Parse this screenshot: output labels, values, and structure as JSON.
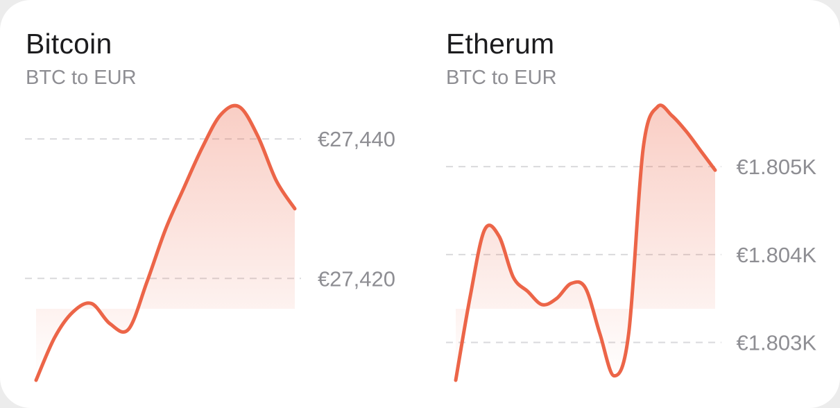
{
  "colors": {
    "line": "#ec6548",
    "grid": "#d9d9dc",
    "label": "#8e8e93"
  },
  "chart_data": [
    {
      "type": "area",
      "title": "Bitcoin",
      "subtitle": "BTC to EUR",
      "y_tick_labels": [
        "€27,440",
        "€27,420"
      ],
      "y_ticks": [
        27440,
        27420
      ],
      "ylim": [
        27405.4,
        27444.6
      ],
      "x": [
        0,
        1,
        2,
        3,
        4,
        5,
        6,
        7,
        8,
        9,
        10,
        11,
        12,
        13,
        14
      ],
      "values": [
        27405.4,
        27411.5,
        27415.2,
        27416.4,
        27413.5,
        27412.7,
        27419.5,
        27427.0,
        27433.0,
        27438.8,
        27443.5,
        27444.6,
        27440.4,
        27434.0,
        27430.0
      ],
      "grid": true,
      "legend": "none"
    },
    {
      "type": "area",
      "title": "Etherum",
      "subtitle": "BTC to EUR",
      "y_tick_labels": [
        "€1.805K",
        "€1.804K",
        "€1.803K"
      ],
      "y_ticks": [
        1.805,
        1.804,
        1.803
      ],
      "ylim": [
        1.80257,
        1.80568
      ],
      "x": [
        0,
        1,
        2,
        3,
        4,
        5,
        6,
        7,
        8,
        9,
        10,
        11,
        12,
        13,
        14,
        15,
        16,
        17,
        18
      ],
      "values": [
        1.80257,
        1.80352,
        1.80428,
        1.80421,
        1.80374,
        1.80358,
        1.80343,
        1.8035,
        1.80367,
        1.80362,
        1.8031,
        1.80262,
        1.8031,
        1.8052,
        1.80568,
        1.80558,
        1.8054,
        1.80518,
        1.80496
      ],
      "grid": true,
      "legend": "none"
    }
  ]
}
